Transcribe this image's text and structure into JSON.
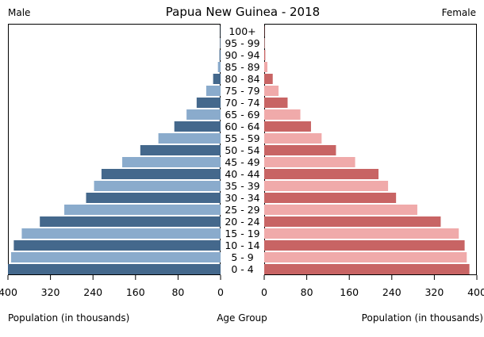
{
  "chart_data": {
    "type": "bar",
    "title": "Papua New Guinea - 2018",
    "left_label": "Male",
    "right_label": "Female",
    "xlabel_left": "Population (in thousands)",
    "xlabel_center": "Age Group",
    "xlabel_right": "Population (in thousands)",
    "xlim": [
      0,
      400
    ],
    "ticks": [
      0,
      80,
      160,
      240,
      320,
      400
    ],
    "tick_labels_left": [
      "400",
      "320",
      "240",
      "160",
      "80",
      "0"
    ],
    "tick_labels_right": [
      "0",
      "80",
      "160",
      "240",
      "320",
      "400"
    ],
    "categories": [
      "0 - 4",
      "5 - 9",
      "10 - 14",
      "15 - 19",
      "20 - 24",
      "25 - 29",
      "30 - 34",
      "35 - 39",
      "40 - 44",
      "45 - 49",
      "50 - 54",
      "55 - 59",
      "60 - 64",
      "65 - 69",
      "70 - 74",
      "75 - 79",
      "80 - 84",
      "85 - 89",
      "90 - 94",
      "95 - 99",
      "100+"
    ],
    "series": [
      {
        "name": "Male",
        "values": [
          400,
          394,
          389,
          374,
          340,
          294,
          253,
          238,
          224,
          185,
          151,
          117,
          87,
          64,
          45,
          27,
          14,
          5,
          2,
          1,
          0.5
        ]
      },
      {
        "name": "Female",
        "values": [
          386,
          381,
          377,
          366,
          332,
          288,
          248,
          233,
          215,
          171,
          135,
          108,
          88,
          68,
          44,
          27,
          16,
          6,
          2,
          1,
          0.5
        ]
      }
    ],
    "colors": {
      "male_dark": "#44688c",
      "male_light": "#8aabcc",
      "female_dark": "#c86464",
      "female_light": "#f0aaaa"
    }
  }
}
